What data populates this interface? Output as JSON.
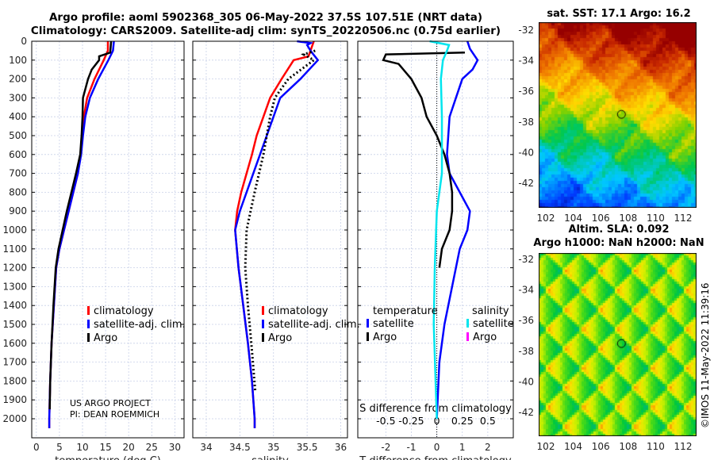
{
  "title_line1": "Argo profile: aoml 5902368_305 06-May-2022 37.5S 107.51E (NRT data)",
  "title_line2": "Climatology: CARS2009. Satellite-adj clim: synTS_20220506.nc (0.75d earlier)",
  "colors": {
    "climatology": "#ff0000",
    "satellite": "#0000ff",
    "argo": "#000000",
    "sal_satellite": "#00e5ee",
    "sal_argo": "#ff00ff"
  },
  "chart_data": [
    {
      "type": "line",
      "xlabel": "temperature (deg C)",
      "ylabel": "",
      "xlim": [
        -1,
        32
      ],
      "ylim": [
        2100,
        0
      ],
      "xticks": [
        0,
        5,
        10,
        15,
        20,
        25,
        30
      ],
      "yticks": [
        0,
        100,
        200,
        300,
        400,
        500,
        600,
        700,
        800,
        900,
        1000,
        1100,
        1200,
        1300,
        1400,
        1500,
        1600,
        1700,
        1800,
        1900,
        2000
      ],
      "legend": [
        "climatology",
        "satellite-adj. clim.",
        "Argo"
      ],
      "notes": [
        "US ARGO PROJECT",
        "PI: DEAN ROEMMICH"
      ],
      "series": [
        {
          "name": "climatology",
          "color": "#ff0000",
          "depth": [
            0,
            50,
            100,
            200,
            300,
            400,
            500,
            600,
            700,
            800,
            900,
            1000,
            1100,
            1200,
            1400,
            1600,
            1800,
            2000,
            2050
          ],
          "values": [
            15.5,
            15.5,
            14.6,
            12.6,
            11,
            10.3,
            10,
            9.6,
            9,
            8,
            7,
            6,
            5,
            4.3,
            3.8,
            3.3,
            3,
            2.8,
            2.8
          ]
        },
        {
          "name": "satellite-adj. clim.",
          "color": "#0000ff",
          "depth": [
            0,
            50,
            100,
            200,
            300,
            400,
            500,
            600,
            700,
            800,
            900,
            1000,
            1100,
            1200,
            1400,
            1600,
            1800,
            2000,
            2050
          ],
          "values": [
            16.8,
            16.6,
            15.6,
            13.4,
            11.6,
            10.6,
            10.1,
            9.7,
            9,
            8,
            7,
            6,
            5,
            4.3,
            3.8,
            3.3,
            3,
            2.8,
            2.8
          ]
        },
        {
          "name": "Argo",
          "color": "#000000",
          "depth": [
            0,
            60,
            80,
            100,
            150,
            200,
            300,
            400,
            500,
            600,
            700,
            800,
            900,
            1000,
            1100,
            1200,
            1400,
            1600,
            1800,
            1950
          ],
          "values": [
            16.2,
            16,
            13.6,
            13.6,
            12,
            11.2,
            10.1,
            10,
            9.8,
            9.5,
            8.6,
            7.6,
            6.6,
            5.7,
            4.8,
            4.2,
            3.7,
            3.3,
            3,
            2.9
          ]
        }
      ]
    },
    {
      "type": "line",
      "xlabel": "salinity",
      "ylabel": "",
      "xlim": [
        33.8,
        36.1
      ],
      "ylim": [
        2100,
        0
      ],
      "xticks": [
        34,
        34.5,
        35,
        35.5,
        36
      ],
      "legend": [
        "climatology",
        "satellite-adj. clim.",
        "Argo"
      ],
      "series": [
        {
          "name": "climatology",
          "color": "#ff0000",
          "depth": [
            0,
            80,
            100,
            200,
            300,
            400,
            500,
            600,
            700,
            800,
            900,
            1000,
            1200,
            1400,
            1600,
            1800,
            2000,
            2050
          ],
          "values": [
            35.6,
            35.52,
            35.3,
            35.12,
            34.95,
            34.85,
            34.75,
            34.68,
            34.6,
            34.52,
            34.46,
            34.43,
            34.48,
            34.55,
            34.62,
            34.68,
            34.72,
            34.72
          ]
        },
        {
          "name": "satellite-adj. clim.",
          "color": "#0000ff",
          "depth": [
            0,
            10,
            20,
            50,
            100,
            200,
            300,
            500,
            700,
            900,
            1000,
            1200,
            1400,
            1600,
            1800,
            2000,
            2050
          ],
          "values": [
            35.35,
            35.55,
            35.5,
            35.55,
            35.66,
            35.4,
            35.1,
            34.9,
            34.7,
            34.5,
            34.43,
            34.48,
            34.55,
            34.62,
            34.68,
            34.72,
            34.72
          ]
        },
        {
          "name": "Argo",
          "color": "#000000",
          "dotted": true,
          "depth": [
            50,
            70,
            90,
            100,
            200,
            300,
            400,
            600,
            800,
            1000,
            1200,
            1400,
            1600,
            1860
          ],
          "values": [
            35.62,
            35.45,
            35.55,
            35.6,
            35.22,
            35.02,
            34.95,
            34.85,
            34.72,
            34.6,
            34.58,
            34.62,
            34.67,
            34.73
          ]
        }
      ]
    },
    {
      "type": "line",
      "xlabel": "T difference from climatology",
      "x2label": "S difference from climatology",
      "xlim": [
        -3.1,
        3.0
      ],
      "ylim": [
        2100,
        0
      ],
      "xticks": [
        -2,
        -1,
        0,
        1,
        2
      ],
      "x2ticks": [
        "-0.5",
        "-0.25",
        "0",
        "0.25",
        "0.5"
      ],
      "x2tick_values": [
        -0.5,
        -0.25,
        0,
        0.25,
        0.5
      ],
      "s_to_t_factor": 4,
      "legend_temperature": {
        "title": "temperature",
        "items": [
          "satellite",
          "Argo"
        ]
      },
      "legend_salinity": {
        "title": "salinity",
        "items": [
          "satellite",
          "Argo"
        ]
      },
      "series": [
        {
          "name": "T satellite",
          "color": "#0000ff",
          "depth": [
            0,
            40,
            60,
            100,
            150,
            200,
            400,
            600,
            700,
            800,
            900,
            1000,
            1100,
            1300,
            1500,
            1700,
            2000
          ],
          "values": [
            1.2,
            1.3,
            1.4,
            1.6,
            1.4,
            1.0,
            0.5,
            0.4,
            0.5,
            0.9,
            1.3,
            1.2,
            0.9,
            0.6,
            0.3,
            0.1,
            0
          ]
        },
        {
          "name": "T Argo",
          "color": "#000000",
          "depth": [
            60,
            70,
            100,
            120,
            200,
            300,
            400,
            500,
            600,
            700,
            800,
            900,
            1000,
            1100,
            1200
          ],
          "values": [
            1.1,
            -2.0,
            -2.1,
            -1.5,
            -1.0,
            -0.6,
            -0.4,
            0,
            0.3,
            0.5,
            0.6,
            0.6,
            0.5,
            0.2,
            0.1
          ]
        },
        {
          "name": "S satellite",
          "color": "#00e5ee",
          "unit": "S",
          "depth": [
            0,
            20,
            50,
            100,
            200,
            400,
            700,
            900,
            1200,
            1500,
            2000
          ],
          "values": [
            -0.07,
            0.12,
            0.1,
            0.06,
            0.04,
            0.05,
            0.05,
            0.0,
            -0.02,
            -0.03,
            0
          ]
        }
      ]
    }
  ],
  "map_sst": {
    "title": "sat. SST: 17.1 Argo: 16.2",
    "xticks": [
      "102",
      "104",
      "106",
      "108",
      "110",
      "112"
    ],
    "yticks": [
      "-32",
      "-34",
      "-36",
      "-38",
      "-40",
      "-42"
    ],
    "marker": {
      "lon": 107.51,
      "lat": -37.5
    }
  },
  "map_sla": {
    "title1": "Altim. SLA: 0.092",
    "title2": "Argo h1000: NaN h2000: NaN",
    "xticks": [
      "102",
      "104",
      "106",
      "108",
      "110",
      "112"
    ],
    "yticks": [
      "-32",
      "-34",
      "-36",
      "-38",
      "-40",
      "-42"
    ],
    "marker": {
      "lon": 107.51,
      "lat": -37.5
    }
  },
  "credit": "©IMOS 11-May-2022 11:39:16"
}
